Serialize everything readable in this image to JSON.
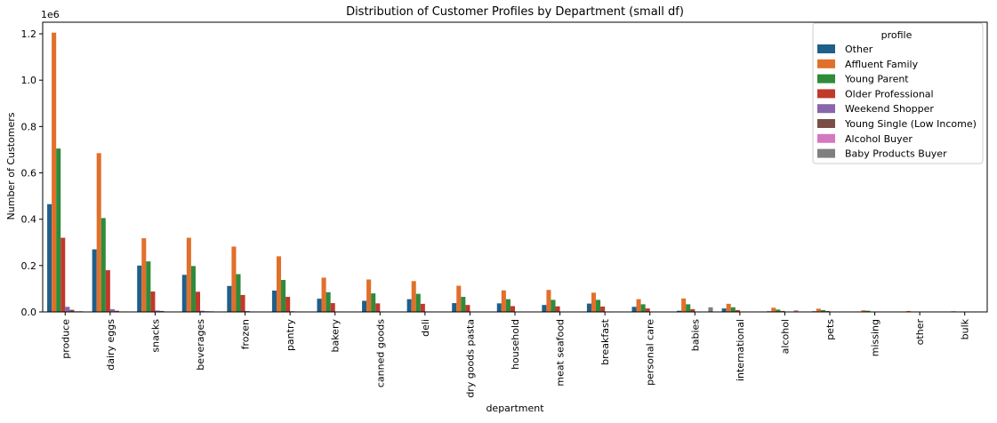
{
  "chart_data": {
    "type": "bar",
    "title": "Distribution of Customer Profiles by Department (small df)",
    "xlabel": "department",
    "ylabel": "Number of Customers",
    "y_offset_label": "1e6",
    "ylim": [
      0,
      1250000
    ],
    "yticks": [
      0,
      200000,
      400000,
      600000,
      800000,
      1000000,
      1200000
    ],
    "ytick_labels": [
      "0.0",
      "0.2",
      "0.4",
      "0.6",
      "0.8",
      "1.0",
      "1.2"
    ],
    "grid": false,
    "legend_title": "profile",
    "legend_position": "top-right",
    "categories": [
      "produce",
      "dairy eggs",
      "snacks",
      "beverages",
      "frozen",
      "pantry",
      "bakery",
      "canned goods",
      "deli",
      "dry goods pasta",
      "household",
      "meat seafood",
      "breakfast",
      "personal care",
      "babies",
      "international",
      "alcohol",
      "pets",
      "missing",
      "other",
      "bulk"
    ],
    "series": [
      {
        "name": "Other",
        "color": "#1f5f8b",
        "values": [
          465000,
          270000,
          200000,
          160000,
          112000,
          92000,
          57000,
          48000,
          55000,
          38000,
          37000,
          30000,
          36000,
          22000,
          5000,
          15000,
          3000,
          3000,
          2000,
          1000,
          500
        ]
      },
      {
        "name": "Affluent Family",
        "color": "#e1702a",
        "values": [
          1205000,
          685000,
          318000,
          320000,
          282000,
          240000,
          148000,
          140000,
          133000,
          113000,
          93000,
          95000,
          83000,
          55000,
          58000,
          35000,
          18000,
          14000,
          7000,
          4000,
          3000
        ]
      },
      {
        "name": "Young Parent",
        "color": "#2e8b3a",
        "values": [
          705000,
          405000,
          218000,
          198000,
          163000,
          138000,
          85000,
          80000,
          78000,
          65000,
          55000,
          52000,
          52000,
          33000,
          33000,
          20000,
          10000,
          8000,
          5000,
          2000,
          1500
        ]
      },
      {
        "name": "Older Professional",
        "color": "#c0392b",
        "values": [
          320000,
          180000,
          88000,
          87000,
          73000,
          65000,
          38000,
          37000,
          35000,
          30000,
          25000,
          24000,
          23000,
          15000,
          12000,
          8000,
          4000,
          4000,
          2000,
          1000,
          500
        ]
      },
      {
        "name": "Weekend Shopper",
        "color": "#8a64ad",
        "values": [
          22000,
          12000,
          6000,
          5000,
          4000,
          3000,
          2000,
          2000,
          2000,
          2000,
          1000,
          1000,
          1000,
          1000,
          1000,
          1000,
          1000,
          500,
          300,
          200,
          100
        ]
      },
      {
        "name": "Young Single (Low Income)",
        "color": "#7b4f45",
        "values": [
          9000,
          5000,
          4000,
          3000,
          2000,
          2000,
          1000,
          1000,
          1000,
          1000,
          1000,
          1000,
          1000,
          500,
          500,
          500,
          300,
          300,
          200,
          100,
          100
        ]
      },
      {
        "name": "Alcohol Buyer",
        "color": "#d479bf",
        "values": [
          3000,
          2000,
          2000,
          3000,
          1000,
          1000,
          500,
          500,
          500,
          500,
          500,
          500,
          500,
          300,
          300,
          500,
          7000,
          200,
          100,
          100,
          100
        ]
      },
      {
        "name": "Baby Products Buyer",
        "color": "#7f7f7f",
        "values": [
          3000,
          2000,
          1000,
          1000,
          1000,
          1000,
          500,
          500,
          500,
          500,
          500,
          500,
          500,
          300,
          20000,
          300,
          200,
          200,
          100,
          100,
          100
        ]
      }
    ]
  }
}
